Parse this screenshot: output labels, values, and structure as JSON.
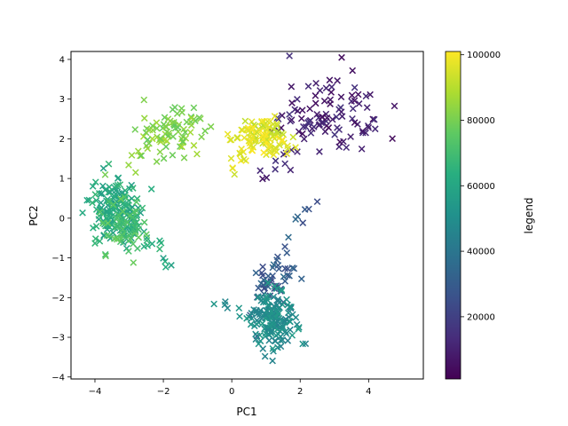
{
  "chart_data": {
    "type": "scatter",
    "title": "",
    "xlabel": "PC1",
    "ylabel": "PC2",
    "xlim": [
      -4.7,
      5.6
    ],
    "ylim": [
      -4.05,
      4.2
    ],
    "xticks": [
      -4,
      -2,
      0,
      2,
      4
    ],
    "yticks": [
      -4,
      -3,
      -2,
      -1,
      0,
      1,
      2,
      3,
      4
    ],
    "xtick_labels": [
      "−4",
      "−2",
      "0",
      "2",
      "4"
    ],
    "ytick_labels": [
      "−4",
      "−3",
      "−2",
      "−1",
      "0",
      "1",
      "2",
      "3",
      "4"
    ],
    "marker": "x",
    "grid": false,
    "colormap": "viridis",
    "colorbar": {
      "label": "legend",
      "range": [
        1000,
        101000
      ],
      "ticks": [
        20000,
        40000,
        60000,
        80000,
        100000
      ],
      "tick_labels": [
        "20000",
        "40000",
        "60000",
        "80000",
        "100000"
      ]
    },
    "clusters": [
      {
        "label_value": 10000,
        "center": [
          2.9,
          2.6
        ],
        "spread": [
          0.75,
          0.5
        ],
        "count": 110,
        "tail_to": [
          0.8,
          1.0
        ]
      },
      {
        "label_value": 30000,
        "center": [
          1.2,
          -1.5
        ],
        "spread": [
          0.3,
          0.35
        ],
        "count": 60,
        "tail_to": [
          2.6,
          0.8
        ]
      },
      {
        "label_value": 50000,
        "center": [
          1.3,
          -2.6
        ],
        "spread": [
          0.35,
          0.35
        ],
        "count": 160,
        "tail_to": [
          -0.5,
          -2.1
        ]
      },
      {
        "label_value": 62000,
        "center": [
          -3.4,
          0.2
        ],
        "spread": [
          0.35,
          0.4
        ],
        "count": 170,
        "tail_to": [
          -1.7,
          -1.3
        ]
      },
      {
        "label_value": 72000,
        "center": [
          -3.2,
          -0.2
        ],
        "spread": [
          0.35,
          0.35
        ],
        "count": 60,
        "tail_to": [
          -2.3,
          -0.6
        ]
      },
      {
        "label_value": 82000,
        "center": [
          -1.8,
          2.2
        ],
        "spread": [
          0.55,
          0.35
        ],
        "count": 90,
        "tail_to": [
          -3.4,
          1.2
        ]
      },
      {
        "label_value": 96000,
        "center": [
          0.9,
          2.1
        ],
        "spread": [
          0.45,
          0.25
        ],
        "count": 120,
        "tail_to": [
          0.2,
          1.3
        ]
      }
    ]
  }
}
